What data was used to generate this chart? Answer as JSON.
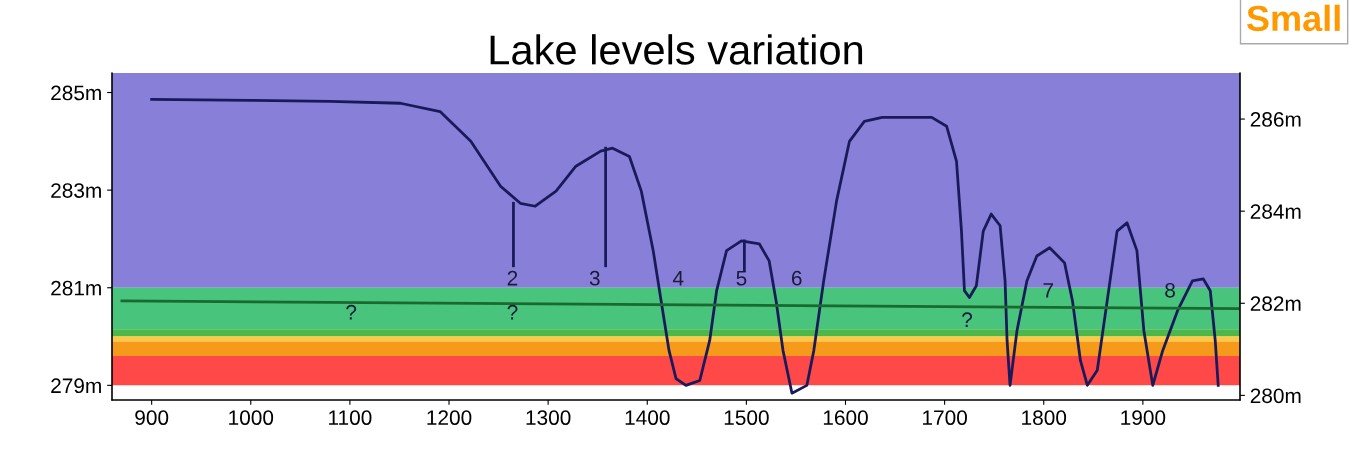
{
  "chart_data": {
    "type": "line",
    "title": "Lake levels variation",
    "xlim": [
      860,
      1998
    ],
    "xticks": [
      900,
      1000,
      1100,
      1200,
      1300,
      1400,
      1500,
      1600,
      1700,
      1800,
      1900
    ],
    "ylim": [
      278.7,
      285.4
    ],
    "yticks": [
      {
        "value": 279,
        "label": "279m"
      },
      {
        "value": 281,
        "label": "281m"
      },
      {
        "value": 283,
        "label": "283m"
      },
      {
        "value": 285,
        "label": "285m"
      }
    ],
    "y2lim": [
      279.9,
      287.0
    ],
    "y2ticks": [
      {
        "value": 280,
        "label": "280m"
      },
      {
        "value": 282,
        "label": "282m"
      },
      {
        "value": 284,
        "label": "284m"
      },
      {
        "value": 286,
        "label": "286m"
      }
    ],
    "grid": false,
    "legend": false,
    "bands": [
      {
        "axis": "y",
        "from": 281,
        "to": 285.4,
        "color": "#8880d8"
      },
      {
        "axis": "y",
        "from": 280.15,
        "to": 281,
        "color": "#48c47c"
      },
      {
        "axis": "y",
        "from": 280.0,
        "to": 280.15,
        "color": "#4cb84c"
      },
      {
        "axis": "y",
        "from": 279.9,
        "to": 280.0,
        "color": "#ffc840"
      },
      {
        "axis": "y",
        "from": 279.6,
        "to": 279.9,
        "color": "#f59a1a"
      },
      {
        "axis": "y",
        "from": 279.0,
        "to": 279.6,
        "color": "#ff4848"
      }
    ],
    "series": [
      {
        "color": "#1a1a5a",
        "x": [
          900,
          999,
          1080,
          1151,
          1191,
          1222,
          1252,
          1272,
          1287,
          1308,
          1328,
          1353,
          1365,
          1382,
          1394,
          1406,
          1414,
          1422,
          1429,
          1439,
          1453,
          1463,
          1470,
          1480,
          1495,
          1513,
          1523,
          1530,
          1537,
          1546,
          1561,
          1568,
          1578,
          1591,
          1604,
          1619,
          1637,
          1687,
          1702,
          1712,
          1717,
          1720,
          1725,
          1732,
          1739,
          1747,
          1756,
          1761,
          1763,
          1766,
          1773,
          1783,
          1793,
          1806,
          1821,
          1829,
          1837,
          1844,
          1854,
          1864,
          1874,
          1884,
          1894,
          1901,
          1910,
          1920,
          1935,
          1950,
          1961,
          1968,
          1973,
          1976
        ],
        "values": [
          284.86,
          284.84,
          284.82,
          284.78,
          284.61,
          284.0,
          283.08,
          282.73,
          282.67,
          282.98,
          283.49,
          283.8,
          283.86,
          283.69,
          282.98,
          281.76,
          280.73,
          279.71,
          279.14,
          279.0,
          279.1,
          279.92,
          280.94,
          281.76,
          281.96,
          281.9,
          281.55,
          280.73,
          279.71,
          278.84,
          279.0,
          279.71,
          281.14,
          282.78,
          284.0,
          284.41,
          284.49,
          284.49,
          284.31,
          283.59,
          282.16,
          280.94,
          280.8,
          281.04,
          282.16,
          282.51,
          282.27,
          281.14,
          279.92,
          279.0,
          280.12,
          281.14,
          281.65,
          281.82,
          281.51,
          280.73,
          279.51,
          279.0,
          279.31,
          280.73,
          282.16,
          282.33,
          281.76,
          280.12,
          279.0,
          279.71,
          280.53,
          281.14,
          281.18,
          280.94,
          279.92,
          279.0
        ]
      },
      {
        "color": "#1a6a30",
        "x": [
          870,
          1998
        ],
        "values": [
          280.73,
          280.57
        ]
      },
      {
        "color": "#1a1a5a",
        "x": [
          1265,
          1265
        ],
        "values": [
          282.73,
          281.45
        ]
      },
      {
        "color": "#1a1a5a",
        "x": [
          1358,
          1358
        ],
        "values": [
          283.86,
          281.45
        ]
      },
      {
        "color": "#1a1a5a",
        "x": [
          1498,
          1498
        ],
        "values": [
          281.96,
          281.35
        ]
      }
    ],
    "annotations": [
      "2",
      "3",
      "4",
      "5",
      "6",
      "7",
      "8",
      "?",
      "?",
      "?",
      "Small"
    ]
  }
}
